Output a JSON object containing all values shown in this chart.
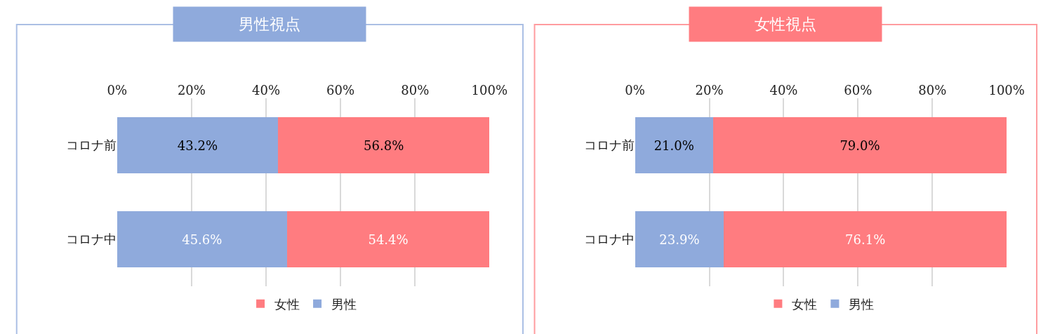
{
  "chart_data": [
    {
      "type": "bar",
      "orientation": "horizontal",
      "stacked": true,
      "title": "男性視点",
      "categories": [
        "コロナ前",
        "コロナ中"
      ],
      "xlim": [
        0,
        100
      ],
      "xticks": [
        {
          "value": 0,
          "label": "0%"
        },
        {
          "value": 20,
          "label": "20%"
        },
        {
          "value": 40,
          "label": "40%"
        },
        {
          "value": 60,
          "label": "60%"
        },
        {
          "value": 80,
          "label": "80%"
        },
        {
          "value": 100,
          "label": "100%"
        }
      ],
      "grid": "x",
      "legend": "bottom",
      "series": [
        {
          "name": "男性",
          "color": "#8faadc",
          "values": [
            43.2,
            45.6
          ],
          "value_labels": [
            "43.2%",
            "45.6%"
          ]
        },
        {
          "name": "女性",
          "color": "#ff7c80",
          "values": [
            56.8,
            54.4
          ],
          "value_labels": [
            "56.8%",
            "54.4%"
          ]
        }
      ]
    },
    {
      "type": "bar",
      "orientation": "horizontal",
      "stacked": true,
      "title": "女性視点",
      "categories": [
        "コロナ前",
        "コロナ中"
      ],
      "xlim": [
        0,
        100
      ],
      "xticks": [
        {
          "value": 0,
          "label": "0%"
        },
        {
          "value": 20,
          "label": "20%"
        },
        {
          "value": 40,
          "label": "40%"
        },
        {
          "value": 60,
          "label": "60%"
        },
        {
          "value": 80,
          "label": "80%"
        },
        {
          "value": 100,
          "label": "100%"
        }
      ],
      "grid": "x",
      "legend": "bottom",
      "series": [
        {
          "name": "男性",
          "color": "#8faadc",
          "values": [
            21.0,
            23.9
          ],
          "value_labels": [
            "21.0%",
            "23.9%"
          ]
        },
        {
          "name": "女性",
          "color": "#ff7c80",
          "values": [
            79.0,
            76.1
          ],
          "value_labels": [
            "79.0%",
            "76.1%"
          ]
        }
      ]
    }
  ]
}
